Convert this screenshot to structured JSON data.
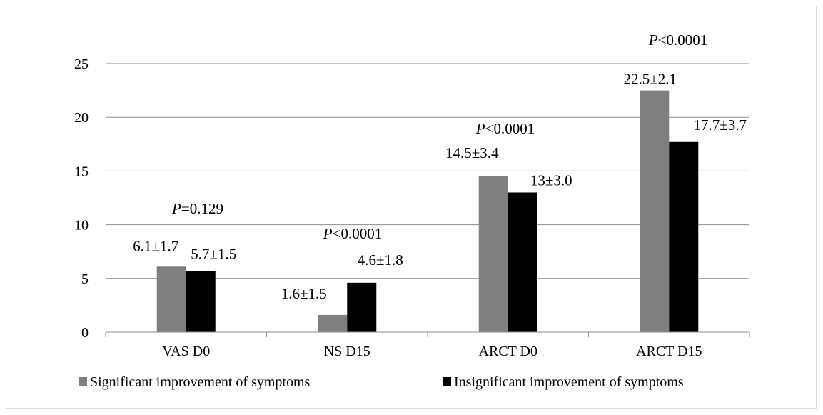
{
  "chart_data": {
    "type": "bar",
    "categories": [
      "VAS D0",
      "NS D15",
      "ARCT D0",
      "ARCT D15"
    ],
    "series": [
      {
        "name": "Significant improvement of symptoms",
        "values": [
          6.1,
          1.6,
          14.5,
          22.5
        ],
        "color": "#7f7f7f"
      },
      {
        "name": "Insignificant improvement of symptoms",
        "values": [
          5.7,
          4.6,
          13.0,
          17.7
        ],
        "color": "#000000"
      }
    ],
    "data_labels": [
      [
        "6.1±1.7",
        "1.6±1.5",
        "14.5±3.4",
        "22.5±2.1"
      ],
      [
        "5.7±1.5",
        "4.6±1.8",
        "13±3.0",
        "17.7±3.7"
      ]
    ],
    "p_values": [
      {
        "p": "P",
        "rest": "=0.129"
      },
      {
        "p": "P",
        "rest": "<0.0001"
      },
      {
        "p": "P",
        "rest": "<0.0001"
      },
      {
        "p": "P",
        "rest": "<0.0001"
      }
    ],
    "y_ticks": [
      "0",
      "5",
      "10",
      "15",
      "20",
      "25"
    ],
    "ylim": [
      0,
      25
    ],
    "grid": true,
    "legend_position": "bottom"
  }
}
